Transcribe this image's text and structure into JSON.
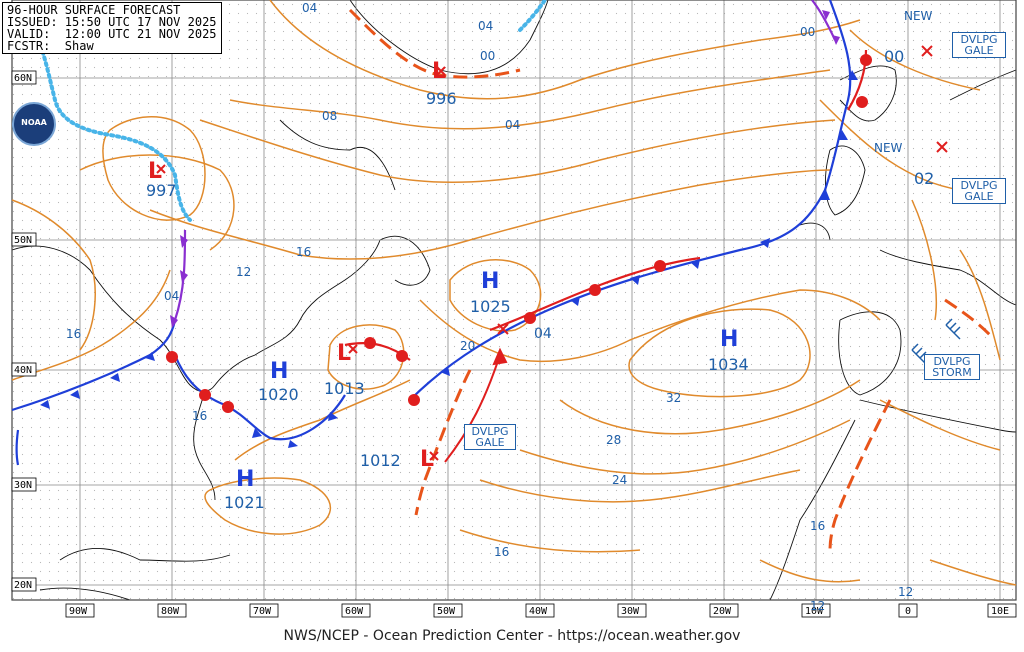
{
  "header": {
    "line1": "96-HOUR SURFACE FORECAST",
    "line2": "ISSUED: 15:50 UTC 17 NOV 2025",
    "line3": "VALID:  12:00 UTC 21 NOV 2025",
    "line4": "FCSTR:  Shaw"
  },
  "logo_text": "NOAA",
  "footer": "NWS/NCEP - Ocean Prediction Center - https://ocean.weather.gov",
  "lat_labels": [
    "60N",
    "50N",
    "40N",
    "30N",
    "20N"
  ],
  "lon_labels": [
    "90W",
    "80W",
    "70W",
    "60W",
    "50W",
    "40W",
    "30W",
    "20W",
    "10W",
    "0",
    "10E"
  ],
  "pressure_centers": [
    {
      "type": "L",
      "value": "996"
    },
    {
      "type": "L",
      "value": "997"
    },
    {
      "type": "L",
      "value": "1013"
    },
    {
      "type": "L",
      "value": "1012"
    },
    {
      "type": "H",
      "value": "1025"
    },
    {
      "type": "H",
      "value": "1034"
    },
    {
      "type": "H",
      "value": "1020"
    },
    {
      "type": "H",
      "value": "1021"
    }
  ],
  "isobar_labels": [
    "04",
    "00",
    "04",
    "08",
    "04",
    "16",
    "12",
    "16",
    "04",
    "16",
    "20",
    "04",
    "32",
    "28",
    "24",
    "16",
    "16",
    "12",
    "12",
    "00",
    "00",
    "02"
  ],
  "new_labels": [
    "NEW",
    "NEW"
  ],
  "warnings": [
    {
      "line1": "DVLPG",
      "line2": "GALE"
    },
    {
      "line1": "DVLPG",
      "line2": "GALE"
    },
    {
      "line1": "DVLPG",
      "line2": "STORM"
    },
    {
      "line1": "DVLPG",
      "line2": "GALE"
    }
  ],
  "colors": {
    "isobar": "#e08a2c",
    "cold_front": "#1f3fd8",
    "warm_front": "#e01e1e",
    "occluded_front": "#8a2fd0",
    "trough": "#e8541a",
    "ice_edge": "#48b4e8",
    "label_blue": "#1f5fa8",
    "grid": "#888888"
  }
}
